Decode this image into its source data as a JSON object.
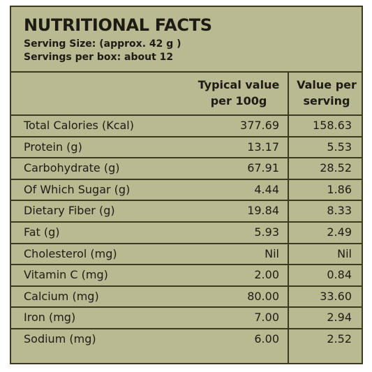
{
  "title": "NUTRITIONAL FACTS",
  "serving_size": "Serving Size: (approx. 42 g )",
  "servings_per_box": "Servings per box: about 12",
  "columns": {
    "per_100g": [
      "Typical value",
      "per 100g"
    ],
    "per_serving": [
      "Value per",
      "serving"
    ]
  },
  "rows": [
    {
      "label": "Total Calories (Kcal)",
      "per_100g": "377.69",
      "per_serving": "158.63"
    },
    {
      "label": "Protein (g)",
      "per_100g": "13.17",
      "per_serving": "5.53"
    },
    {
      "label": "Carbohydrate (g)",
      "per_100g": "67.91",
      "per_serving": "28.52"
    },
    {
      "label": "Of Which Sugar (g)",
      "per_100g": "4.44",
      "per_serving": "1.86"
    },
    {
      "label": "Dietary Fiber (g)",
      "per_100g": "19.84",
      "per_serving": "8.33"
    },
    {
      "label": "Fat (g)",
      "per_100g": "5.93",
      "per_serving": "2.49"
    },
    {
      "label": "Cholesterol (mg)",
      "per_100g": "Nil",
      "per_serving": "Nil"
    },
    {
      "label": "Vitamin C (mg)",
      "per_100g": "2.00",
      "per_serving": "0.84"
    },
    {
      "label": "Calcium (mg)",
      "per_100g": "80.00",
      "per_serving": "33.60"
    },
    {
      "label": "Iron (mg)",
      "per_100g": "7.00",
      "per_serving": "2.94"
    },
    {
      "label": "Sodium (mg)",
      "per_100g": "6.00",
      "per_serving": "2.52"
    }
  ],
  "colors": {
    "background": "#b9ba91",
    "rule": "#3b3a20",
    "text": "#1c1c14"
  }
}
